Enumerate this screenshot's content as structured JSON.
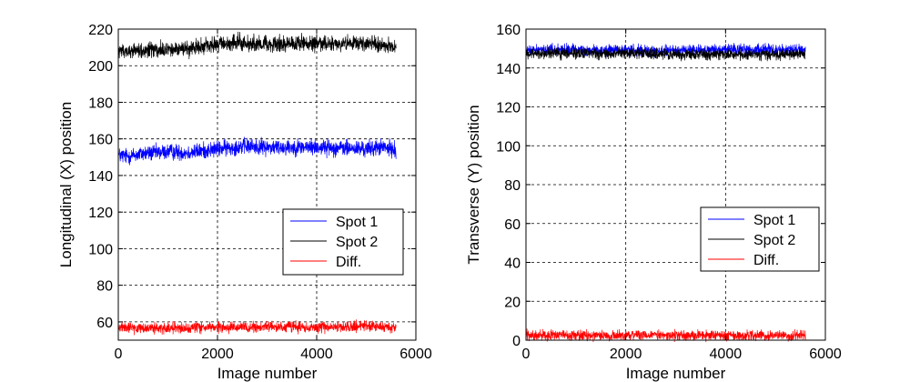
{
  "chart_data": [
    {
      "type": "line",
      "xlabel": "Image number",
      "ylabel": "Longitudinal (X) position",
      "xlim": [
        0,
        6000
      ],
      "ylim": [
        50,
        220
      ],
      "xticks": [
        0,
        2000,
        4000,
        6000
      ],
      "yticks": [
        60,
        80,
        100,
        120,
        140,
        160,
        180,
        200,
        220
      ],
      "grid": true,
      "legend": "lower-right",
      "series": [
        {
          "name": "Spot 1",
          "color": "#0000ff",
          "x": [
            0,
            200,
            500,
            800,
            1000,
            1400,
            2000,
            2500,
            3000,
            3500,
            4000,
            4500,
            5000,
            5300,
            5600
          ],
          "y": [
            151,
            150.5,
            152,
            152.5,
            153,
            152.5,
            154.5,
            156,
            155.5,
            155.5,
            155.5,
            155,
            154.5,
            155.5,
            154
          ],
          "noise": 2.2
        },
        {
          "name": "Spot 2",
          "color": "#000000",
          "x": [
            0,
            500,
            1000,
            1500,
            2000,
            2500,
            3000,
            3500,
            4000,
            4500,
            5000,
            5600
          ],
          "y": [
            208,
            208.5,
            209,
            210,
            211.5,
            212.5,
            212,
            212,
            212,
            212,
            212,
            211
          ],
          "noise": 2.2
        },
        {
          "name": "Diff.",
          "color": "#ff0000",
          "x": [
            0,
            1000,
            2000,
            3000,
            4000,
            5000,
            5600
          ],
          "y": [
            57,
            56.5,
            57,
            57,
            57,
            57.5,
            57
          ],
          "noise": 1.5
        }
      ]
    },
    {
      "type": "line",
      "xlabel": "Image number",
      "ylabel": "Transverse (Y) position",
      "xlim": [
        0,
        6000
      ],
      "ylim": [
        0,
        160
      ],
      "xticks": [
        0,
        2000,
        4000,
        6000
      ],
      "yticks": [
        0,
        20,
        40,
        60,
        80,
        100,
        120,
        140,
        160
      ],
      "grid": true,
      "legend": "lower-right",
      "series": [
        {
          "name": "Spot 1",
          "color": "#0000ff",
          "x": [
            0,
            1000,
            2000,
            3000,
            4000,
            5000,
            5600
          ],
          "y": [
            149.5,
            149.5,
            149,
            149,
            149.5,
            149.5,
            149.5
          ],
          "noise": 1.4
        },
        {
          "name": "Spot 2",
          "color": "#000000",
          "x": [
            0,
            1000,
            2000,
            3000,
            4000,
            5000,
            5600
          ],
          "y": [
            147.5,
            147.5,
            147.5,
            147,
            147,
            147,
            147
          ],
          "noise": 1.4
        },
        {
          "name": "Diff.",
          "color": "#ff0000",
          "x": [
            0,
            1000,
            2000,
            3000,
            4000,
            5000,
            5600
          ],
          "y": [
            2.5,
            2.5,
            2.5,
            2.5,
            2.5,
            2.5,
            2.5
          ],
          "noise": 1.3
        }
      ]
    }
  ]
}
